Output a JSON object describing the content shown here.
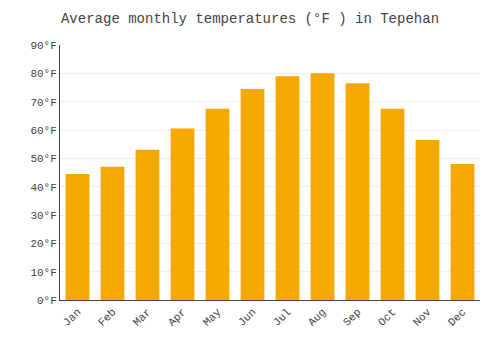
{
  "chart_data": {
    "type": "bar",
    "title": "Average monthly temperatures (°F ) in Tepehan",
    "categories": [
      "Jan",
      "Feb",
      "Mar",
      "Apr",
      "May",
      "Jun",
      "Jul",
      "Aug",
      "Sep",
      "Oct",
      "Nov",
      "Dec"
    ],
    "values": [
      44.5,
      47,
      53,
      60.5,
      67.5,
      74.5,
      79,
      80,
      76.5,
      67.5,
      56.5,
      48
    ],
    "color": "#F5A800",
    "ylim": [
      0,
      90
    ],
    "yticks": [
      {
        "value": 0,
        "label": "0°F"
      },
      {
        "value": 10,
        "label": "10°F"
      },
      {
        "value": 20,
        "label": "20°F"
      },
      {
        "value": 30,
        "label": "30°F"
      },
      {
        "value": 40,
        "label": "40°F"
      },
      {
        "value": 50,
        "label": "50°F"
      },
      {
        "value": 60,
        "label": "60°F"
      },
      {
        "value": 70,
        "label": "70°F"
      },
      {
        "value": 80,
        "label": "80°F"
      },
      {
        "value": 90,
        "label": "90°F"
      }
    ],
    "grid": true
  }
}
